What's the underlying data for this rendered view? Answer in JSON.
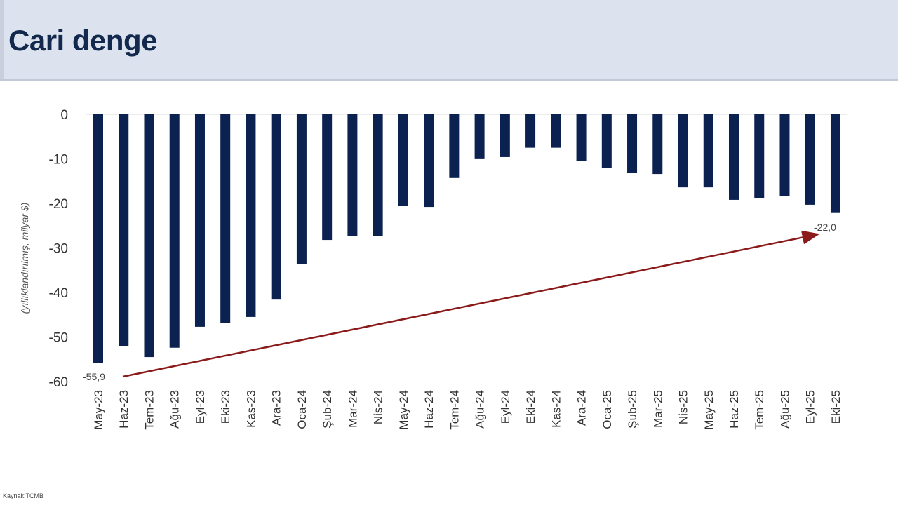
{
  "header": {
    "title": "Cari denge"
  },
  "footer": {
    "source": "Kaynak:TCMB"
  },
  "annotations": {
    "start_label": "-55,9",
    "end_label": "-22,0"
  },
  "colors": {
    "bar": "#0b2150",
    "arrow": "#8b1a1a",
    "header_bg": "#dce3ef",
    "title": "#13284d"
  },
  "chart_data": {
    "type": "bar",
    "title": "Cari denge",
    "xlabel": "",
    "ylabel": "(yıllıklandırılmış, milyar $)",
    "ylim": [
      -60,
      0
    ],
    "yticks": [
      0,
      -10,
      -20,
      -30,
      -40,
      -50,
      -60
    ],
    "grid": false,
    "legend": null,
    "categories": [
      "May-23",
      "Haz-23",
      "Tem-23",
      "Ağu-23",
      "Eyl-23",
      "Eki-23",
      "Kas-23",
      "Ara-23",
      "Oca-24",
      "Şub-24",
      "Mar-24",
      "Nis-24",
      "May-24",
      "Haz-24",
      "Tem-24",
      "Ağu-24",
      "Eyl-24",
      "Eki-24",
      "Kas-24",
      "Ara-24",
      "Oca-25",
      "Şub-25",
      "Mar-25",
      "Nis-25",
      "May-25",
      "Haz-25",
      "Tem-25",
      "Ağu-25",
      "Eyl-25",
      "Eki-25"
    ],
    "values": [
      -55.9,
      -52.1,
      -54.5,
      -52.4,
      -47.7,
      -46.9,
      -45.5,
      -41.6,
      -33.7,
      -28.2,
      -27.4,
      -27.4,
      -20.5,
      -20.8,
      -14.3,
      -9.9,
      -9.6,
      -7.5,
      -7.5,
      -10.4,
      -12.1,
      -13.2,
      -13.4,
      -16.4,
      -16.4,
      -19.2,
      -18.9,
      -18.4,
      -20.3,
      -22.0
    ],
    "annotations": [
      {
        "text": "-55,9",
        "category": "May-23"
      },
      {
        "text": "-22,0",
        "category": "Eki-25"
      },
      {
        "type": "arrow",
        "from": "May-23",
        "to": "Eki-25",
        "note": "trend arrow showing improvement"
      }
    ]
  }
}
